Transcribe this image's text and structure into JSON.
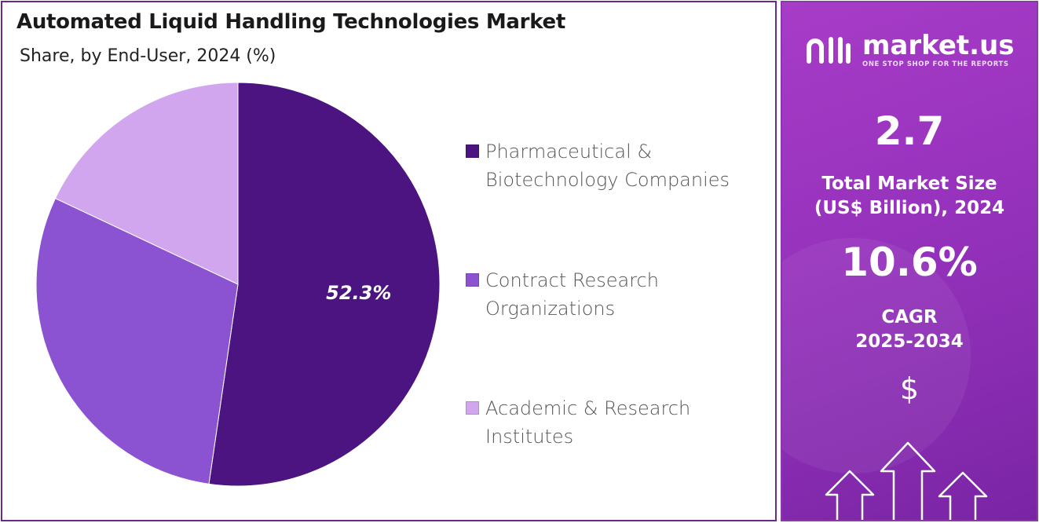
{
  "chart_data": {
    "type": "pie",
    "title": "Automated Liquid Handling Technologies Market",
    "subtitle": "Share, by End-User, 2024 (%)",
    "categories": [
      "Pharmaceutical & Biotechnology Companies",
      "Contract Research Organizations",
      "Academic & Research Institutes"
    ],
    "values": [
      52.3,
      29.7,
      18.0
    ],
    "data_labels": [
      "52.3%",
      "",
      ""
    ],
    "colors": [
      "#4b1480",
      "#8b52d1",
      "#d1a6ef"
    ],
    "legend_placement": "right"
  },
  "legend": {
    "items": [
      {
        "line1": "Pharmaceutical &",
        "line2": "Biotechnology Companies"
      },
      {
        "line1": "Contract Research",
        "line2": "Organizations"
      },
      {
        "line1": "Academic & Research",
        "line2": "Institutes"
      }
    ]
  },
  "brand": {
    "name": "market.us",
    "tagline": "ONE STOP SHOP FOR THE REPORTS"
  },
  "stats": {
    "market_size_value": "2.7",
    "market_size_label_1": "Total Market Size",
    "market_size_label_2": "(US$ Billion), 2024",
    "cagr_value": "10.6%",
    "cagr_label_1": "CAGR",
    "cagr_label_2": "2025-2034",
    "currency_symbol": "$"
  },
  "icons": {
    "logo": "market-us-logo-icon",
    "currency": "dollar-icon",
    "growth": "up-arrows-icon"
  }
}
